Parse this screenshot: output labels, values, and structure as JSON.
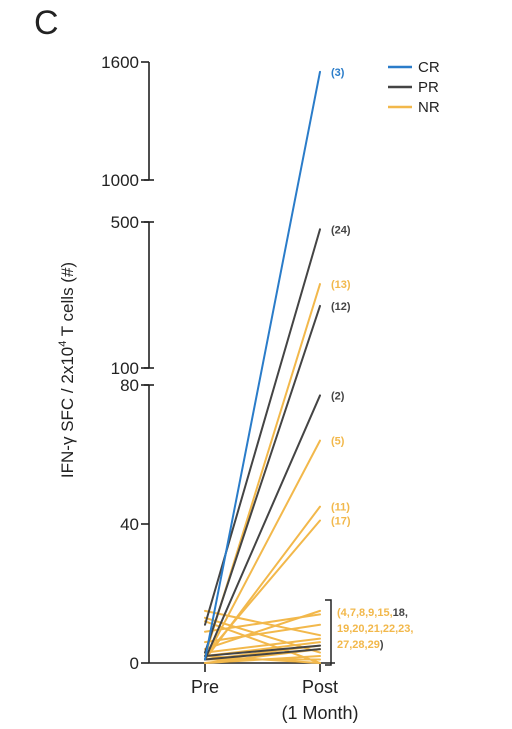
{
  "panel_label": "C",
  "colors": {
    "CR": "#2a7cc9",
    "PR": "#444444",
    "NR": "#f2b84b",
    "axis": "#222222"
  },
  "chart_data": {
    "type": "line",
    "title": "",
    "xlabel": "",
    "ylabel": "IFN-γ SFC / 2x10^4 T cells (#)",
    "ylabel_parts": {
      "pre": "IFN-γ SFC / 2x10",
      "sup": "4",
      "post": " T cells (#)"
    },
    "categories": [
      "Pre",
      "Post"
    ],
    "category_sublabels": [
      "",
      "(1 Month)"
    ],
    "y_axis_segments": [
      {
        "range": [
          0,
          80
        ],
        "ticks": [
          0,
          40,
          80
        ],
        "tick_labels": [
          "0",
          "40",
          "80"
        ]
      },
      {
        "range": [
          100,
          500
        ],
        "ticks": [
          100,
          500
        ],
        "tick_labels": [
          "100",
          "500"
        ]
      },
      {
        "range": [
          1000,
          1600
        ],
        "ticks": [
          1000,
          1600
        ],
        "tick_labels": [
          "1000",
          "1600"
        ]
      }
    ],
    "legend": {
      "position": "top-right",
      "entries": [
        {
          "name": "CR",
          "color_key": "CR"
        },
        {
          "name": "PR",
          "color_key": "PR"
        },
        {
          "name": "NR",
          "color_key": "NR"
        }
      ]
    },
    "series": [
      {
        "group": "CR",
        "label": "(3)",
        "values": [
          1,
          1550
        ]
      },
      {
        "group": "PR",
        "label": "(24)",
        "values": [
          11,
          480
        ]
      },
      {
        "group": "PR",
        "label": "(12)",
        "values": [
          3,
          270
        ]
      },
      {
        "group": "PR",
        "label": "(2)",
        "values": [
          1,
          77
        ]
      },
      {
        "group": "NR",
        "label": "(13)",
        "values": [
          2,
          330
        ]
      },
      {
        "group": "NR",
        "label": "(5)",
        "values": [
          1,
          64
        ]
      },
      {
        "group": "NR",
        "label": "(11)",
        "values": [
          1,
          45
        ]
      },
      {
        "group": "NR",
        "label": "(17)",
        "values": [
          2,
          41
        ]
      },
      {
        "group": "NR",
        "label": "",
        "values": [
          15,
          8
        ]
      },
      {
        "group": "NR",
        "label": "",
        "values": [
          13,
          3
        ]
      },
      {
        "group": "NR",
        "label": "",
        "values": [
          12,
          0
        ]
      },
      {
        "group": "NR",
        "label": "",
        "values": [
          9,
          14
        ]
      },
      {
        "group": "NR",
        "label": "",
        "values": [
          6,
          11
        ]
      },
      {
        "group": "NR",
        "label": "",
        "values": [
          4,
          15
        ]
      },
      {
        "group": "NR",
        "label": "",
        "values": [
          3,
          7
        ]
      },
      {
        "group": "NR",
        "label": "",
        "values": [
          2,
          6
        ]
      },
      {
        "group": "NR",
        "label": "",
        "values": [
          1,
          5
        ]
      },
      {
        "group": "NR",
        "label": "",
        "values": [
          0,
          2
        ]
      },
      {
        "group": "NR",
        "label": "",
        "values": [
          1,
          1
        ]
      },
      {
        "group": "NR",
        "label": "",
        "values": [
          0,
          4
        ]
      },
      {
        "group": "NR",
        "label": "",
        "values": [
          2,
          0
        ]
      },
      {
        "group": "PR",
        "label": "",
        "values": [
          1,
          4
        ]
      },
      {
        "group": "PR",
        "label": "",
        "values": [
          2,
          5
        ]
      }
    ],
    "bracket_annotation": {
      "lines": [
        [
          {
            "text": "(4,7,8,9,15,",
            "group": "NR"
          },
          {
            "text": "18,",
            "group": "PR"
          }
        ],
        [
          {
            "text": "19,20,21,22,23,",
            "group": "NR"
          }
        ],
        [
          {
            "text": "27,28,29",
            "group": "NR"
          },
          {
            "text": ")",
            "group": "PR"
          }
        ]
      ]
    }
  }
}
